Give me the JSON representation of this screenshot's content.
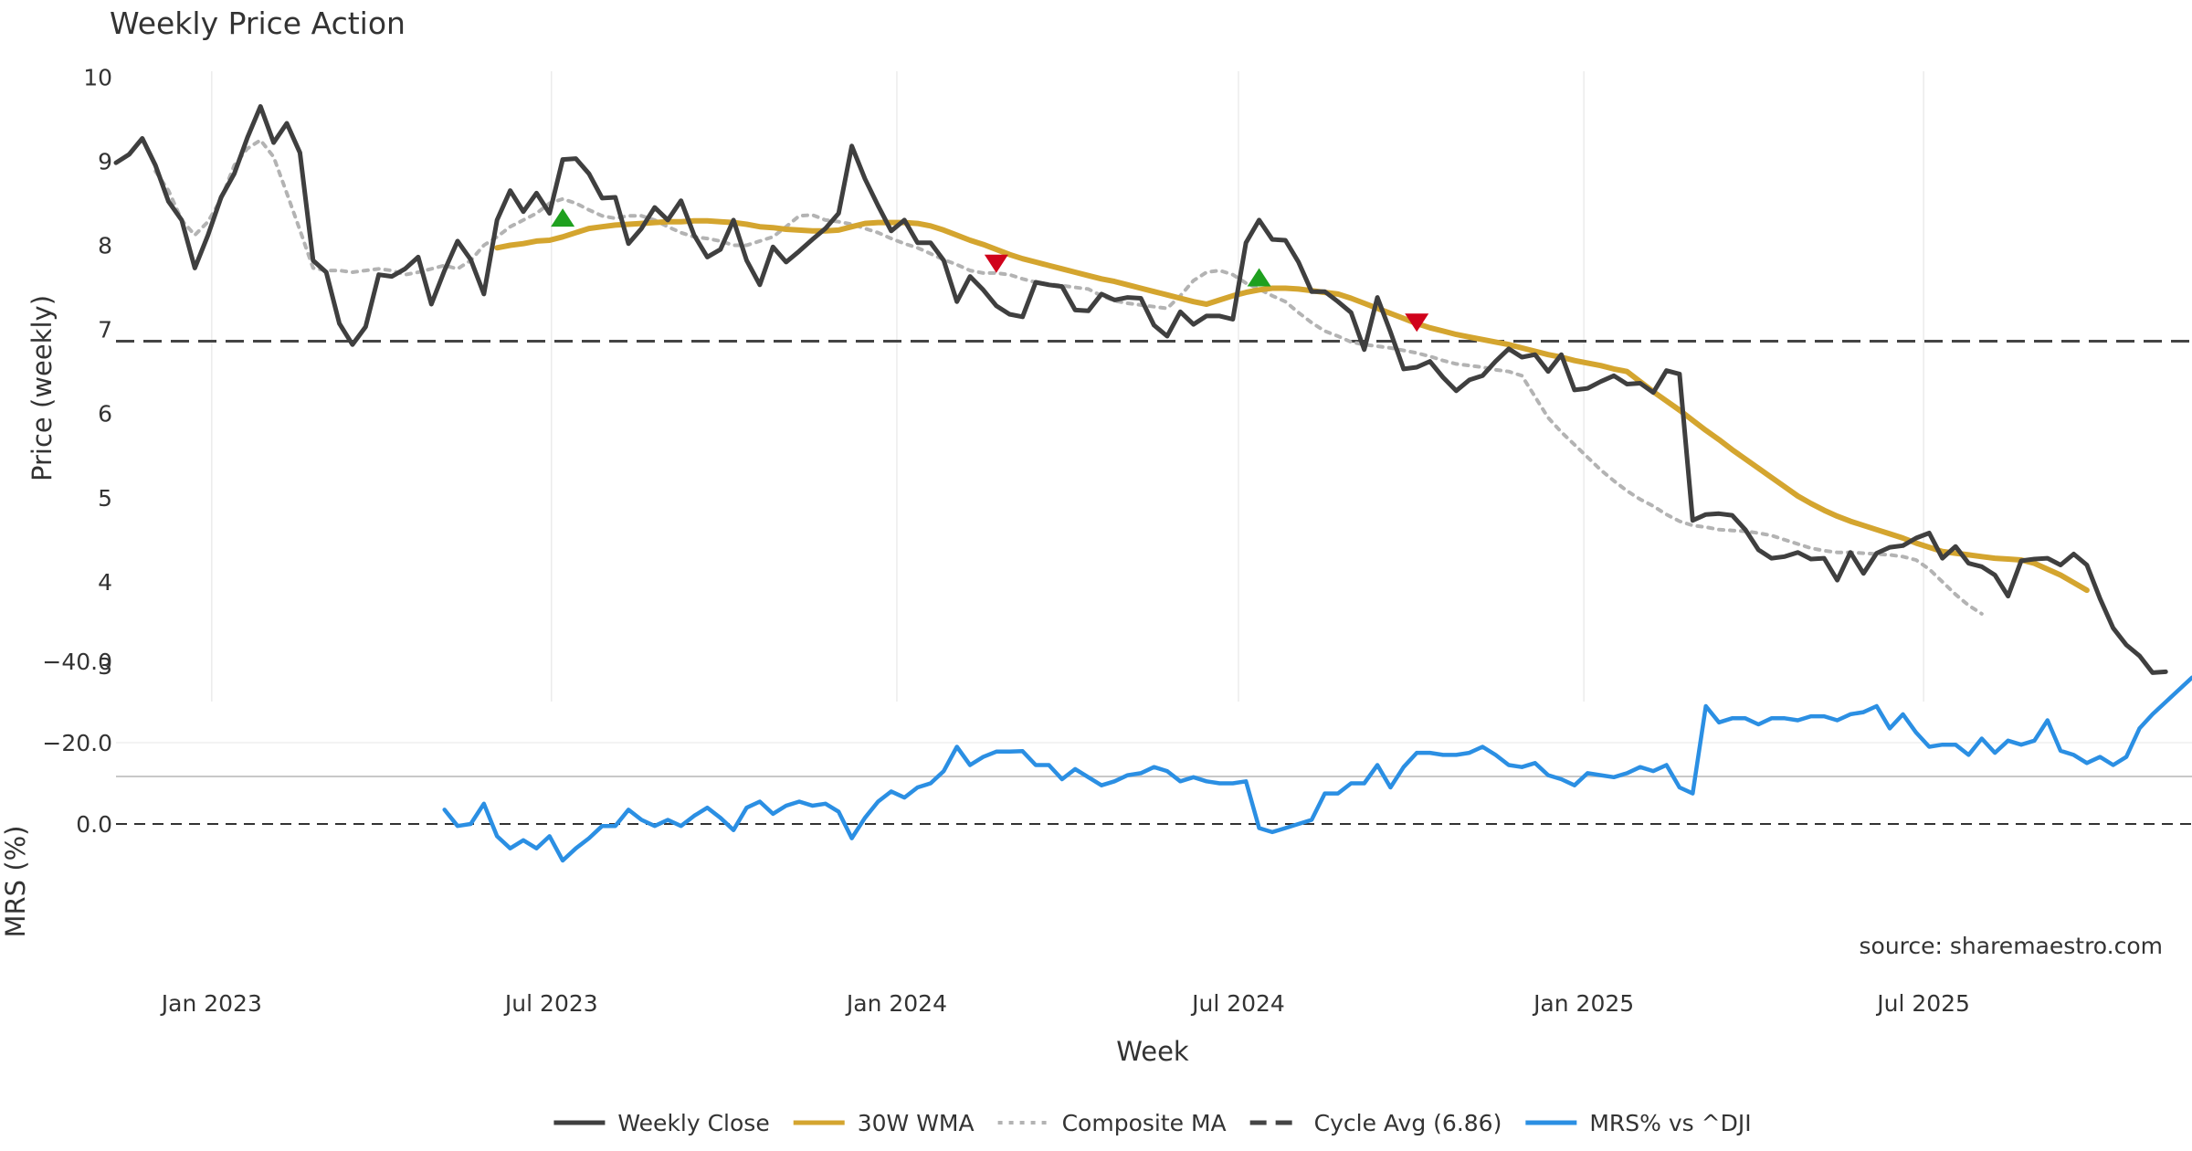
{
  "chart_data": [
    {
      "type": "line",
      "title": "Weekly Price Action",
      "ylabel": "Price (weekly)",
      "ylim": [
        2.55,
        10.0
      ],
      "yticks": [
        "3",
        "4",
        "5",
        "6",
        "7",
        "8",
        "9",
        "10"
      ],
      "x_start": "2022-11-11",
      "x_end": "2025-11-21",
      "x_step_days": 7,
      "series": [
        {
          "name": "Weekly Close",
          "color": "#3f3f3f",
          "style": "solid",
          "values": [
            8.98,
            9.08,
            9.27,
            8.95,
            8.52,
            8.3,
            7.73,
            8.12,
            8.57,
            8.85,
            9.28,
            9.65,
            9.22,
            9.45,
            9.1,
            7.82,
            7.68,
            7.07,
            6.82,
            7.03,
            7.65,
            7.63,
            7.72,
            7.86,
            7.3,
            7.7,
            8.05,
            7.83,
            7.42,
            8.3,
            8.65,
            8.4,
            8.62,
            8.38,
            9.02,
            9.03,
            8.85,
            8.56,
            8.57,
            8.02,
            8.2,
            8.45,
            8.3,
            8.53,
            8.12,
            7.86,
            7.95,
            8.3,
            7.82,
            7.53,
            7.98,
            7.8,
            7.93,
            8.07,
            8.2,
            8.38,
            9.18,
            8.79,
            8.47,
            8.17,
            8.3,
            8.03,
            8.03,
            7.82,
            7.33,
            7.63,
            7.47,
            7.28,
            7.18,
            7.15,
            7.56,
            7.53,
            7.51,
            7.23,
            7.22,
            7.42,
            7.35,
            7.38,
            7.37,
            7.05,
            6.92,
            7.21,
            7.06,
            7.16,
            7.16,
            7.12,
            8.03,
            8.3,
            8.07,
            8.06,
            7.8,
            7.45,
            7.45,
            7.33,
            7.2,
            6.76,
            7.38,
            6.97,
            6.53,
            6.55,
            6.62,
            6.43,
            6.27,
            6.4,
            6.45,
            6.62,
            6.77,
            6.67,
            6.7,
            6.5,
            6.7,
            6.28,
            6.3,
            6.38,
            6.45,
            6.35,
            6.36,
            6.25,
            6.51,
            6.47,
            4.73,
            4.8,
            4.81,
            4.79,
            4.62,
            4.38,
            4.28,
            4.3,
            4.35,
            4.27,
            4.28,
            4.02,
            4.35,
            4.1,
            4.34,
            4.41,
            4.43,
            4.52,
            4.58,
            4.28,
            4.42,
            4.22,
            4.18,
            4.08,
            3.83,
            4.25,
            4.27,
            4.28,
            4.2,
            4.33,
            4.2,
            3.8,
            3.45,
            3.25,
            3.12,
            2.92,
            2.93
          ]
        },
        {
          "name": "30W WMA",
          "color": "#d4a52f",
          "style": "solid",
          "start_index": 29,
          "values": [
            7.97,
            8.0,
            8.02,
            8.05,
            8.06,
            8.1,
            8.15,
            8.2,
            8.22,
            8.24,
            8.25,
            8.26,
            8.27,
            8.28,
            8.28,
            8.29,
            8.29,
            8.28,
            8.27,
            8.25,
            8.22,
            8.21,
            8.19,
            8.18,
            8.17,
            8.17,
            8.18,
            8.22,
            8.26,
            8.27,
            8.27,
            8.27,
            8.26,
            8.23,
            8.18,
            8.12,
            8.06,
            8.01,
            7.95,
            7.89,
            7.84,
            7.8,
            7.76,
            7.72,
            7.68,
            7.64,
            7.6,
            7.57,
            7.53,
            7.49,
            7.45,
            7.41,
            7.37,
            7.33,
            7.3,
            7.35,
            7.4,
            7.44,
            7.47,
            7.49,
            7.49,
            7.48,
            7.46,
            7.44,
            7.42,
            7.37,
            7.31,
            7.25,
            7.19,
            7.13,
            7.07,
            7.02,
            6.98,
            6.94,
            6.91,
            6.88,
            6.85,
            6.82,
            6.78,
            6.74,
            6.7,
            6.67,
            6.63,
            6.6,
            6.57,
            6.53,
            6.5,
            6.38,
            6.26,
            6.15,
            6.04,
            5.92,
            5.8,
            5.69,
            5.57,
            5.46,
            5.35,
            5.24,
            5.13,
            5.02,
            4.93,
            4.85,
            4.78,
            4.72,
            4.67,
            4.62,
            4.57,
            4.52,
            4.46,
            4.41,
            4.36,
            4.34,
            4.32,
            4.3,
            4.28,
            4.27,
            4.26,
            4.22,
            4.15,
            4.08,
            3.99,
            3.9
          ]
        },
        {
          "name": "Composite MA",
          "color": "#b3b3b3",
          "style": "dotted",
          "start_index": 3,
          "values": [
            8.88,
            8.65,
            8.3,
            8.12,
            8.28,
            8.55,
            8.95,
            9.15,
            9.25,
            9.05,
            8.62,
            8.18,
            7.73,
            7.7,
            7.7,
            7.68,
            7.7,
            7.72,
            7.7,
            7.65,
            7.68,
            7.72,
            7.76,
            7.72,
            7.82,
            8.0,
            8.1,
            8.22,
            8.3,
            8.38,
            8.5,
            8.55,
            8.5,
            8.42,
            8.35,
            8.32,
            8.35,
            8.35,
            8.3,
            8.22,
            8.15,
            8.1,
            8.08,
            8.05,
            8.0,
            8.0,
            8.05,
            8.1,
            8.22,
            8.35,
            8.36,
            8.3,
            8.28,
            8.25,
            8.2,
            8.15,
            8.08,
            8.02,
            7.97,
            7.9,
            7.83,
            7.77,
            7.7,
            7.67,
            7.67,
            7.65,
            7.6,
            7.56,
            7.54,
            7.52,
            7.5,
            7.48,
            7.4,
            7.34,
            7.31,
            7.29,
            7.27,
            7.25,
            7.4,
            7.58,
            7.68,
            7.7,
            7.65,
            7.55,
            7.48,
            7.4,
            7.33,
            7.2,
            7.08,
            6.98,
            6.92,
            6.85,
            6.82,
            6.8,
            6.78,
            6.75,
            6.72,
            6.68,
            6.63,
            6.59,
            6.57,
            6.55,
            6.52,
            6.5,
            6.45,
            6.2,
            5.95,
            5.78,
            5.63,
            5.48,
            5.33,
            5.2,
            5.08,
            4.98,
            4.9,
            4.8,
            4.72,
            4.67,
            4.65,
            4.62,
            4.61,
            4.6,
            4.58,
            4.55,
            4.5,
            4.45,
            4.4,
            4.37,
            4.35,
            4.35,
            4.34,
            4.33,
            4.32,
            4.3,
            4.26,
            4.15,
            4.0,
            3.85,
            3.72,
            3.62
          ]
        },
        {
          "name": "Cycle Avg (6.86)",
          "color": "#444444",
          "style": "dashed",
          "constant": 6.86
        }
      ],
      "markers": [
        {
          "type": "buy",
          "index": 34,
          "value": 8.33,
          "color": "#1fa01f"
        },
        {
          "type": "sell",
          "index": 67,
          "value": 7.78,
          "color": "#d0021b"
        },
        {
          "type": "buy",
          "index": 87,
          "value": 7.62,
          "color": "#1fa01f"
        },
        {
          "type": "sell",
          "index": 99,
          "value": 7.08,
          "color": "#d0021b"
        }
      ]
    },
    {
      "type": "line",
      "ylabel": "MRS (%)",
      "xlabel": "Week",
      "ylim": [
        -40.0,
        12.0
      ],
      "yticks": [
        "0.0",
        "−20.0",
        "−40.0"
      ],
      "xticks": [
        {
          "label": "Jan 2023",
          "date": "2023-01-01"
        },
        {
          "label": "Jul 2023",
          "date": "2023-07-01"
        },
        {
          "label": "Jan 2024",
          "date": "2024-01-01"
        },
        {
          "label": "Jul 2024",
          "date": "2024-07-01"
        },
        {
          "label": "Jan 2025",
          "date": "2025-01-01"
        },
        {
          "label": "Jul 2025",
          "date": "2025-07-01"
        }
      ],
      "zero_line": 0.0,
      "annotation": "source: sharemaestro.com",
      "series": [
        {
          "name": "MRS% vs ^DJI",
          "color": "#2b8fe3",
          "style": "solid",
          "start_index": 25,
          "values": [
            -3.5,
            0.5,
            0.0,
            -5.0,
            3.0,
            6.0,
            4.0,
            6.0,
            3.0,
            9.0,
            6.0,
            3.5,
            0.5,
            0.5,
            -3.5,
            -1.0,
            0.5,
            -1.0,
            0.5,
            -2.0,
            -4.0,
            -1.5,
            1.5,
            -4.0,
            -5.5,
            -2.5,
            -4.5,
            -5.5,
            -4.5,
            -5.0,
            -3.0,
            3.5,
            -1.5,
            -5.5,
            -8.0,
            -6.5,
            -9.0,
            -10.0,
            -13.0,
            -19.0,
            -14.5,
            -16.5,
            -17.8,
            -17.8,
            -17.9,
            -14.5,
            -14.5,
            -11.0,
            -13.5,
            -11.5,
            -9.5,
            -10.5,
            -12.0,
            -12.5,
            -14.0,
            -13.0,
            -10.5,
            -11.5,
            -10.5,
            -10.0,
            -10.0,
            -10.5,
            1.0,
            2.0,
            1.0,
            0.0,
            -1.0,
            -7.5,
            -7.5,
            -10.0,
            -10.0,
            -14.5,
            -9.0,
            -14.0,
            -17.5,
            -17.5,
            -17.0,
            -17.0,
            -17.5,
            -19.0,
            -17.0,
            -14.5,
            -14.0,
            -15.0,
            -12.0,
            -11.0,
            -9.5,
            -12.5,
            -12.0,
            -11.5,
            -12.5,
            -14.0,
            -13.0,
            -14.5,
            -9.0,
            -7.5,
            -29.0,
            -25.0,
            -26.0,
            -26.0,
            -24.5,
            -26.0,
            -26.0,
            -25.5,
            -26.5,
            -26.5,
            -25.5,
            -27.0,
            -27.5,
            -29.0,
            -23.5,
            -27.0,
            -22.5,
            -19.0,
            -19.5,
            -19.5,
            -17.0,
            -21.0,
            -17.5,
            -20.5,
            -19.5,
            -20.5,
            -25.5,
            -18.0,
            -17.0,
            -15.0,
            -16.5,
            -14.5,
            -16.5,
            -23.5,
            -27.0,
            -30.0,
            -33.0,
            -36.0,
            -37.5,
            -35.5
          ]
        }
      ]
    }
  ]
}
